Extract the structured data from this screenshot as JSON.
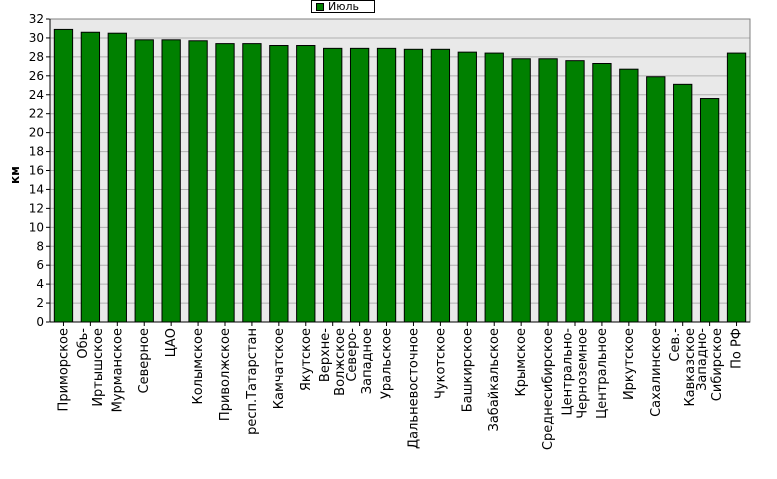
{
  "chart_data": {
    "type": "bar",
    "title": "",
    "xlabel": "",
    "ylabel": "км",
    "ylim": [
      0,
      32
    ],
    "yticks": [
      0,
      2,
      4,
      6,
      8,
      10,
      12,
      14,
      16,
      18,
      20,
      22,
      24,
      26,
      28,
      30,
      32
    ],
    "grid": true,
    "legend_position": "top-center",
    "colors": {
      "bar": "#008000",
      "bar_edge": "#000000",
      "plot_bg": "#e9e9e9",
      "grid": "#b0b0b0"
    },
    "categories": [
      [
        "Приморское"
      ],
      [
        "Обь-",
        "Иртышское"
      ],
      [
        "Мурманское"
      ],
      [
        "Северное"
      ],
      [
        "ЦАО"
      ],
      [
        "Колымское"
      ],
      [
        "Приволжское"
      ],
      [
        "респ.Татарстан"
      ],
      [
        "Камчатское"
      ],
      [
        "Якутское"
      ],
      [
        "Верхне-",
        "Волжское"
      ],
      [
        "Северо-",
        "Западное"
      ],
      [
        "Уральское"
      ],
      [
        "Дальневосточное"
      ],
      [
        "Чукотское"
      ],
      [
        "Башкирское"
      ],
      [
        "Забайкальское"
      ],
      [
        "Крымское"
      ],
      [
        "Среднесибирское"
      ],
      [
        "Центрально-",
        "Черноземное"
      ],
      [
        "Центральное"
      ],
      [
        "Иркутское"
      ],
      [
        "Сахалинское"
      ],
      [
        "Сев.-",
        "Кавказское"
      ],
      [
        "Западно-",
        "Сибирское"
      ],
      [
        "По РФ"
      ]
    ],
    "series": [
      {
        "name": "Июль",
        "values": [
          30.9,
          30.6,
          30.5,
          29.8,
          29.8,
          29.7,
          29.4,
          29.4,
          29.2,
          29.2,
          28.9,
          28.9,
          28.9,
          28.8,
          28.8,
          28.5,
          28.4,
          27.8,
          27.8,
          27.6,
          27.3,
          26.7,
          25.9,
          25.1,
          23.6,
          28.4
        ]
      }
    ]
  }
}
